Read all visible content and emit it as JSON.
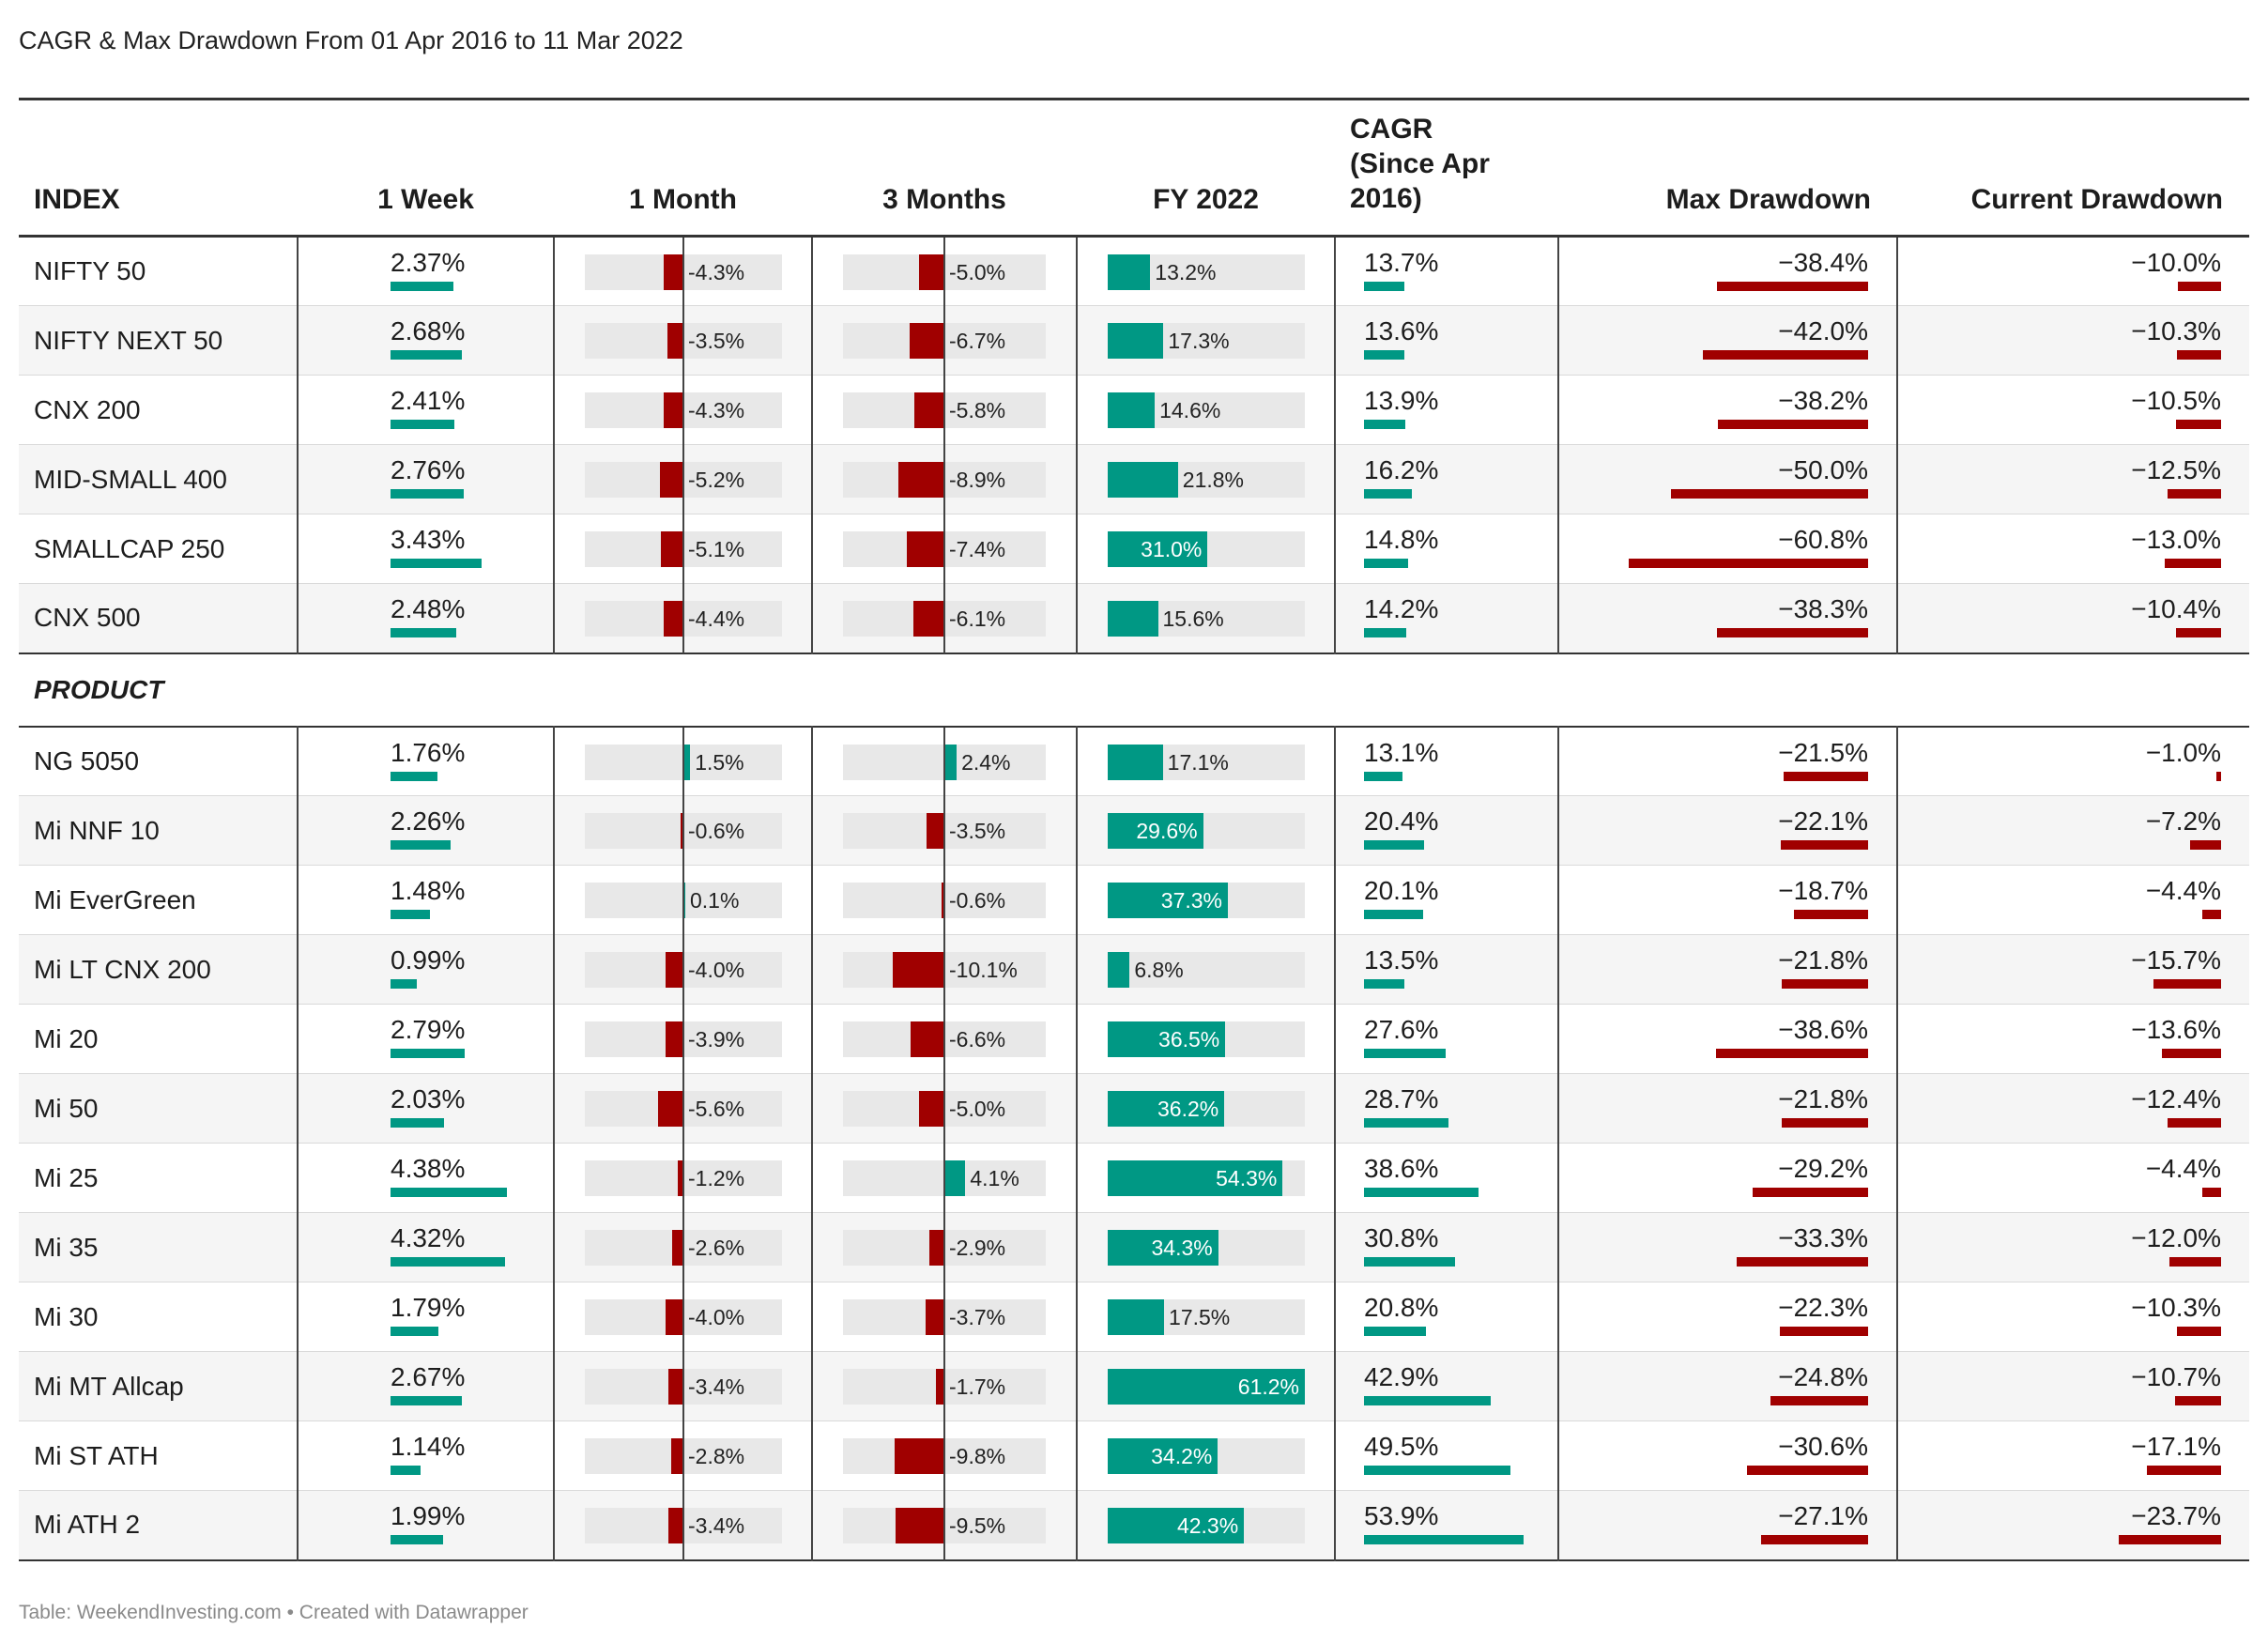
{
  "title": "CAGR & Max Drawdown From 01 Apr 2016 to 11 Mar 2022",
  "footer": "Table: WeekendInvesting.com • Created with Datawrapper",
  "colors": {
    "positive": "#009884",
    "negative": "#a00000",
    "track": "#e8e8e8"
  },
  "chart_data": {
    "type": "table",
    "columns": [
      "INDEX",
      "1 Week",
      "1 Month",
      "3 Months",
      "FY 2022",
      "CAGR\n(Since Apr\n2016)",
      "Max Drawdown",
      "Current Drawdown"
    ],
    "cagr_header_lines": [
      "CAGR",
      "(Since Apr",
      "2016)"
    ],
    "sections": [
      {
        "name": "INDEX",
        "rows": [
          {
            "name": "NIFTY 50",
            "week": 2.37,
            "month": -4.3,
            "months3": -5.0,
            "fy2022": 13.2,
            "cagr": 13.7,
            "max_dd": -38.4,
            "cur_dd": -10.0
          },
          {
            "name": "NIFTY NEXT 50",
            "week": 2.68,
            "month": -3.5,
            "months3": -6.7,
            "fy2022": 17.3,
            "cagr": 13.6,
            "max_dd": -42.0,
            "cur_dd": -10.3
          },
          {
            "name": "CNX 200",
            "week": 2.41,
            "month": -4.3,
            "months3": -5.8,
            "fy2022": 14.6,
            "cagr": 13.9,
            "max_dd": -38.2,
            "cur_dd": -10.5
          },
          {
            "name": "MID-SMALL 400",
            "week": 2.76,
            "month": -5.2,
            "months3": -8.9,
            "fy2022": 21.8,
            "cagr": 16.2,
            "max_dd": -50.0,
            "cur_dd": -12.5
          },
          {
            "name": "SMALLCAP 250",
            "week": 3.43,
            "month": -5.1,
            "months3": -7.4,
            "fy2022": 31.0,
            "cagr": 14.8,
            "max_dd": -60.8,
            "cur_dd": -13.0
          },
          {
            "name": "CNX 500",
            "week": 2.48,
            "month": -4.4,
            "months3": -6.1,
            "fy2022": 15.6,
            "cagr": 14.2,
            "max_dd": -38.3,
            "cur_dd": -10.4
          }
        ]
      },
      {
        "name": "PRODUCT",
        "rows": [
          {
            "name": "NG 5050",
            "week": 1.76,
            "month": 1.5,
            "months3": 2.4,
            "fy2022": 17.1,
            "cagr": 13.1,
            "max_dd": -21.5,
            "cur_dd": -1.0
          },
          {
            "name": "Mi NNF 10",
            "week": 2.26,
            "month": -0.6,
            "months3": -3.5,
            "fy2022": 29.6,
            "cagr": 20.4,
            "max_dd": -22.1,
            "cur_dd": -7.2
          },
          {
            "name": "Mi EverGreen",
            "week": 1.48,
            "month": 0.1,
            "months3": -0.6,
            "fy2022": 37.3,
            "cagr": 20.1,
            "max_dd": -18.7,
            "cur_dd": -4.4
          },
          {
            "name": "Mi LT CNX 200",
            "week": 0.99,
            "month": -4.0,
            "months3": -10.1,
            "fy2022": 6.8,
            "cagr": 13.5,
            "max_dd": -21.8,
            "cur_dd": -15.7
          },
          {
            "name": "Mi 20",
            "week": 2.79,
            "month": -3.9,
            "months3": -6.6,
            "fy2022": 36.5,
            "cagr": 27.6,
            "max_dd": -38.6,
            "cur_dd": -13.6
          },
          {
            "name": "Mi 50",
            "week": 2.03,
            "month": -5.6,
            "months3": -5.0,
            "fy2022": 36.2,
            "cagr": 28.7,
            "max_dd": -21.8,
            "cur_dd": -12.4
          },
          {
            "name": "Mi 25",
            "week": 4.38,
            "month": -1.2,
            "months3": 4.1,
            "fy2022": 54.3,
            "cagr": 38.6,
            "max_dd": -29.2,
            "cur_dd": -4.4
          },
          {
            "name": "Mi 35",
            "week": 4.32,
            "month": -2.6,
            "months3": -2.9,
            "fy2022": 34.3,
            "cagr": 30.8,
            "max_dd": -33.3,
            "cur_dd": -12.0
          },
          {
            "name": "Mi 30",
            "week": 1.79,
            "month": -4.0,
            "months3": -3.7,
            "fy2022": 17.5,
            "cagr": 20.8,
            "max_dd": -22.3,
            "cur_dd": -10.3
          },
          {
            "name": "Mi MT Allcap",
            "week": 2.67,
            "month": -3.4,
            "months3": -1.7,
            "fy2022": 61.2,
            "cagr": 42.9,
            "max_dd": -24.8,
            "cur_dd": -10.7
          },
          {
            "name": "Mi ST ATH",
            "week": 1.14,
            "month": -2.8,
            "months3": -9.8,
            "fy2022": 34.2,
            "cagr": 49.5,
            "max_dd": -30.6,
            "cur_dd": -17.1
          },
          {
            "name": "Mi ATH 2",
            "week": 1.99,
            "month": -3.4,
            "months3": -9.5,
            "fy2022": 42.3,
            "cagr": 53.9,
            "max_dd": -27.1,
            "cur_dd": -23.7
          }
        ]
      }
    ]
  }
}
